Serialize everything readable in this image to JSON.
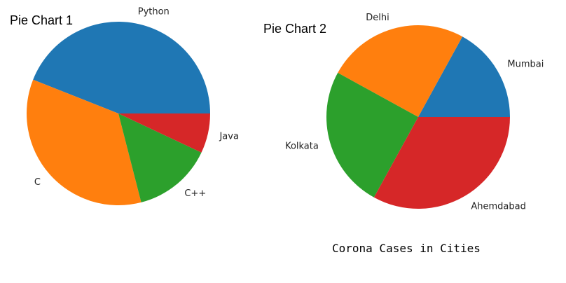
{
  "chart_data": [
    {
      "type": "pie",
      "title": "Pie Chart 1",
      "categories": [
        "Python",
        "C",
        "C++",
        "Java"
      ],
      "values": [
        44,
        35,
        14,
        7
      ],
      "colors": [
        "#1f77b4",
        "#ff7f0e",
        "#2ca02c",
        "#d62728"
      ],
      "start_angle_deg": 0,
      "direction": "counterclockwise"
    },
    {
      "type": "pie",
      "title": "Pie Chart 2",
      "categories": [
        "Mumbai",
        "Delhi",
        "Kolkata",
        "Ahemdabad"
      ],
      "values": [
        17,
        25,
        25,
        33
      ],
      "colors": [
        "#1f77b4",
        "#ff7f0e",
        "#2ca02c",
        "#d62728"
      ],
      "start_angle_deg": 0,
      "direction": "counterclockwise"
    }
  ],
  "caption": "Corona Cases in Cities"
}
